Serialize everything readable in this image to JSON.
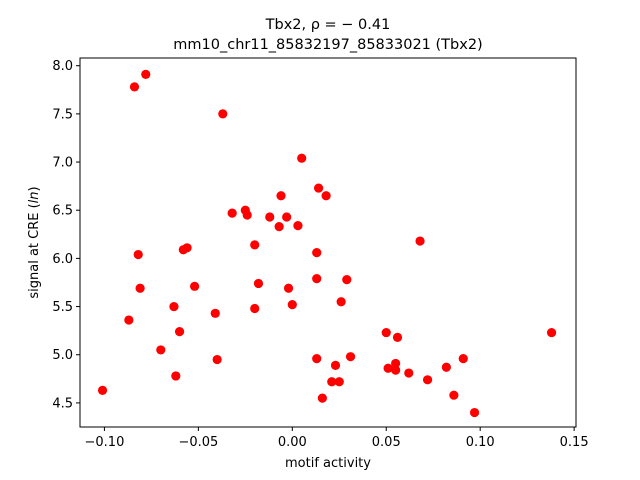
{
  "chart_data": {
    "type": "scatter",
    "title_line1": "Tbx2, ρ = − 0.41",
    "title_line2": "mm10_chr11_85832197_85833021 (Tbx2)",
    "xlabel": "motif activity",
    "ylabel": "signal at CRE (ln)",
    "ylabel_prefix": "signal at CRE (",
    "ylabel_italic": "ln",
    "ylabel_suffix": ")",
    "xlim": [
      -0.113,
      0.151
    ],
    "ylim": [
      4.25,
      8.08
    ],
    "xticks": [
      -0.1,
      -0.05,
      0.0,
      0.05,
      0.1,
      0.15
    ],
    "xtick_labels": [
      "−0.10",
      "−0.05",
      "0.00",
      "0.05",
      "0.10",
      "0.15"
    ],
    "yticks": [
      4.5,
      5.0,
      5.5,
      6.0,
      6.5,
      7.0,
      7.5,
      8.0
    ],
    "ytick_labels": [
      "4.5",
      "5.0",
      "5.5",
      "6.0",
      "6.5",
      "7.0",
      "7.5",
      "8.0"
    ],
    "grid": false,
    "marker_color": "#ff0000",
    "points": [
      {
        "x": -0.101,
        "y": 4.63
      },
      {
        "x": -0.087,
        "y": 5.36
      },
      {
        "x": -0.084,
        "y": 7.78
      },
      {
        "x": -0.082,
        "y": 6.04
      },
      {
        "x": -0.081,
        "y": 5.69
      },
      {
        "x": -0.078,
        "y": 7.91
      },
      {
        "x": -0.07,
        "y": 5.05
      },
      {
        "x": -0.063,
        "y": 5.5
      },
      {
        "x": -0.062,
        "y": 4.78
      },
      {
        "x": -0.06,
        "y": 5.24
      },
      {
        "x": -0.058,
        "y": 6.09
      },
      {
        "x": -0.056,
        "y": 6.11
      },
      {
        "x": -0.052,
        "y": 5.71
      },
      {
        "x": -0.041,
        "y": 5.43
      },
      {
        "x": -0.04,
        "y": 4.95
      },
      {
        "x": -0.037,
        "y": 7.5
      },
      {
        "x": -0.032,
        "y": 6.47
      },
      {
        "x": -0.025,
        "y": 6.5
      },
      {
        "x": -0.024,
        "y": 6.45
      },
      {
        "x": -0.02,
        "y": 6.14
      },
      {
        "x": -0.02,
        "y": 5.48
      },
      {
        "x": -0.018,
        "y": 5.74
      },
      {
        "x": -0.012,
        "y": 6.43
      },
      {
        "x": -0.007,
        "y": 6.33
      },
      {
        "x": -0.006,
        "y": 6.65
      },
      {
        "x": -0.003,
        "y": 6.43
      },
      {
        "x": -0.002,
        "y": 5.69
      },
      {
        "x": 0.0,
        "y": 5.52
      },
      {
        "x": 0.003,
        "y": 6.34
      },
      {
        "x": 0.005,
        "y": 7.04
      },
      {
        "x": 0.013,
        "y": 6.06
      },
      {
        "x": 0.013,
        "y": 5.79
      },
      {
        "x": 0.013,
        "y": 4.96
      },
      {
        "x": 0.014,
        "y": 6.73
      },
      {
        "x": 0.016,
        "y": 4.55
      },
      {
        "x": 0.018,
        "y": 6.65
      },
      {
        "x": 0.021,
        "y": 4.72
      },
      {
        "x": 0.023,
        "y": 4.89
      },
      {
        "x": 0.025,
        "y": 4.72
      },
      {
        "x": 0.026,
        "y": 5.55
      },
      {
        "x": 0.029,
        "y": 5.78
      },
      {
        "x": 0.031,
        "y": 4.98
      },
      {
        "x": 0.05,
        "y": 5.23
      },
      {
        "x": 0.051,
        "y": 4.86
      },
      {
        "x": 0.055,
        "y": 4.91
      },
      {
        "x": 0.055,
        "y": 4.84
      },
      {
        "x": 0.056,
        "y": 5.18
      },
      {
        "x": 0.062,
        "y": 4.81
      },
      {
        "x": 0.068,
        "y": 6.18
      },
      {
        "x": 0.072,
        "y": 4.74
      },
      {
        "x": 0.082,
        "y": 4.87
      },
      {
        "x": 0.086,
        "y": 4.58
      },
      {
        "x": 0.091,
        "y": 4.96
      },
      {
        "x": 0.097,
        "y": 4.4
      },
      {
        "x": 0.138,
        "y": 5.23
      }
    ]
  }
}
